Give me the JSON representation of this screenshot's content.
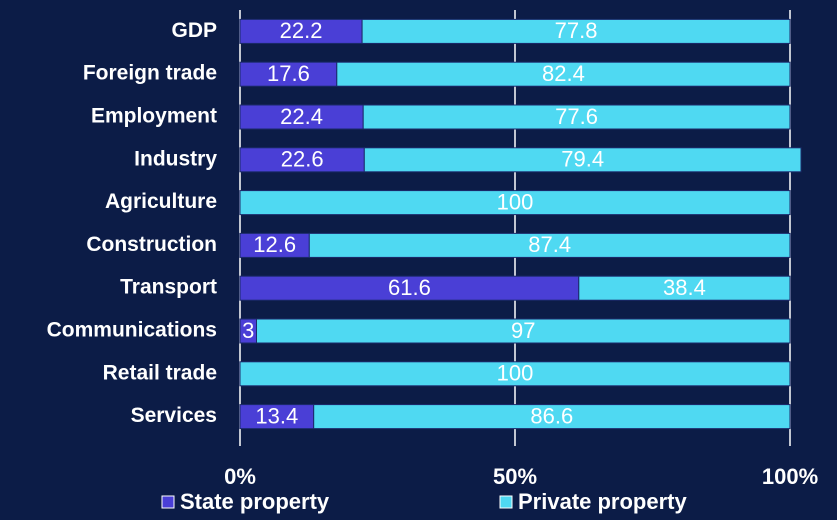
{
  "chart_data": {
    "type": "stacked_barh",
    "categories": [
      "GDP",
      "Foreign trade",
      "Employment",
      "Industry",
      "Agriculture",
      "Construction",
      "Transport",
      "Communications",
      "Retail trade",
      "Services"
    ],
    "series": [
      {
        "name": "State property",
        "color": "#4a3fd6",
        "values": [
          22.2,
          17.6,
          22.4,
          22.6,
          null,
          12.6,
          61.6,
          3,
          null,
          13.4
        ]
      },
      {
        "name": "Private property",
        "color": "#4fd9f2",
        "values": [
          77.8,
          82.4,
          77.6,
          79.4,
          100,
          87.4,
          38.4,
          97,
          100,
          86.6
        ]
      }
    ],
    "xlim": [
      0,
      100
    ],
    "xticks": [
      {
        "value": 0,
        "label": "0%"
      },
      {
        "value": 50,
        "label": "50%"
      },
      {
        "value": 100,
        "label": "100%"
      }
    ],
    "grid": true,
    "legend": "bottom"
  }
}
